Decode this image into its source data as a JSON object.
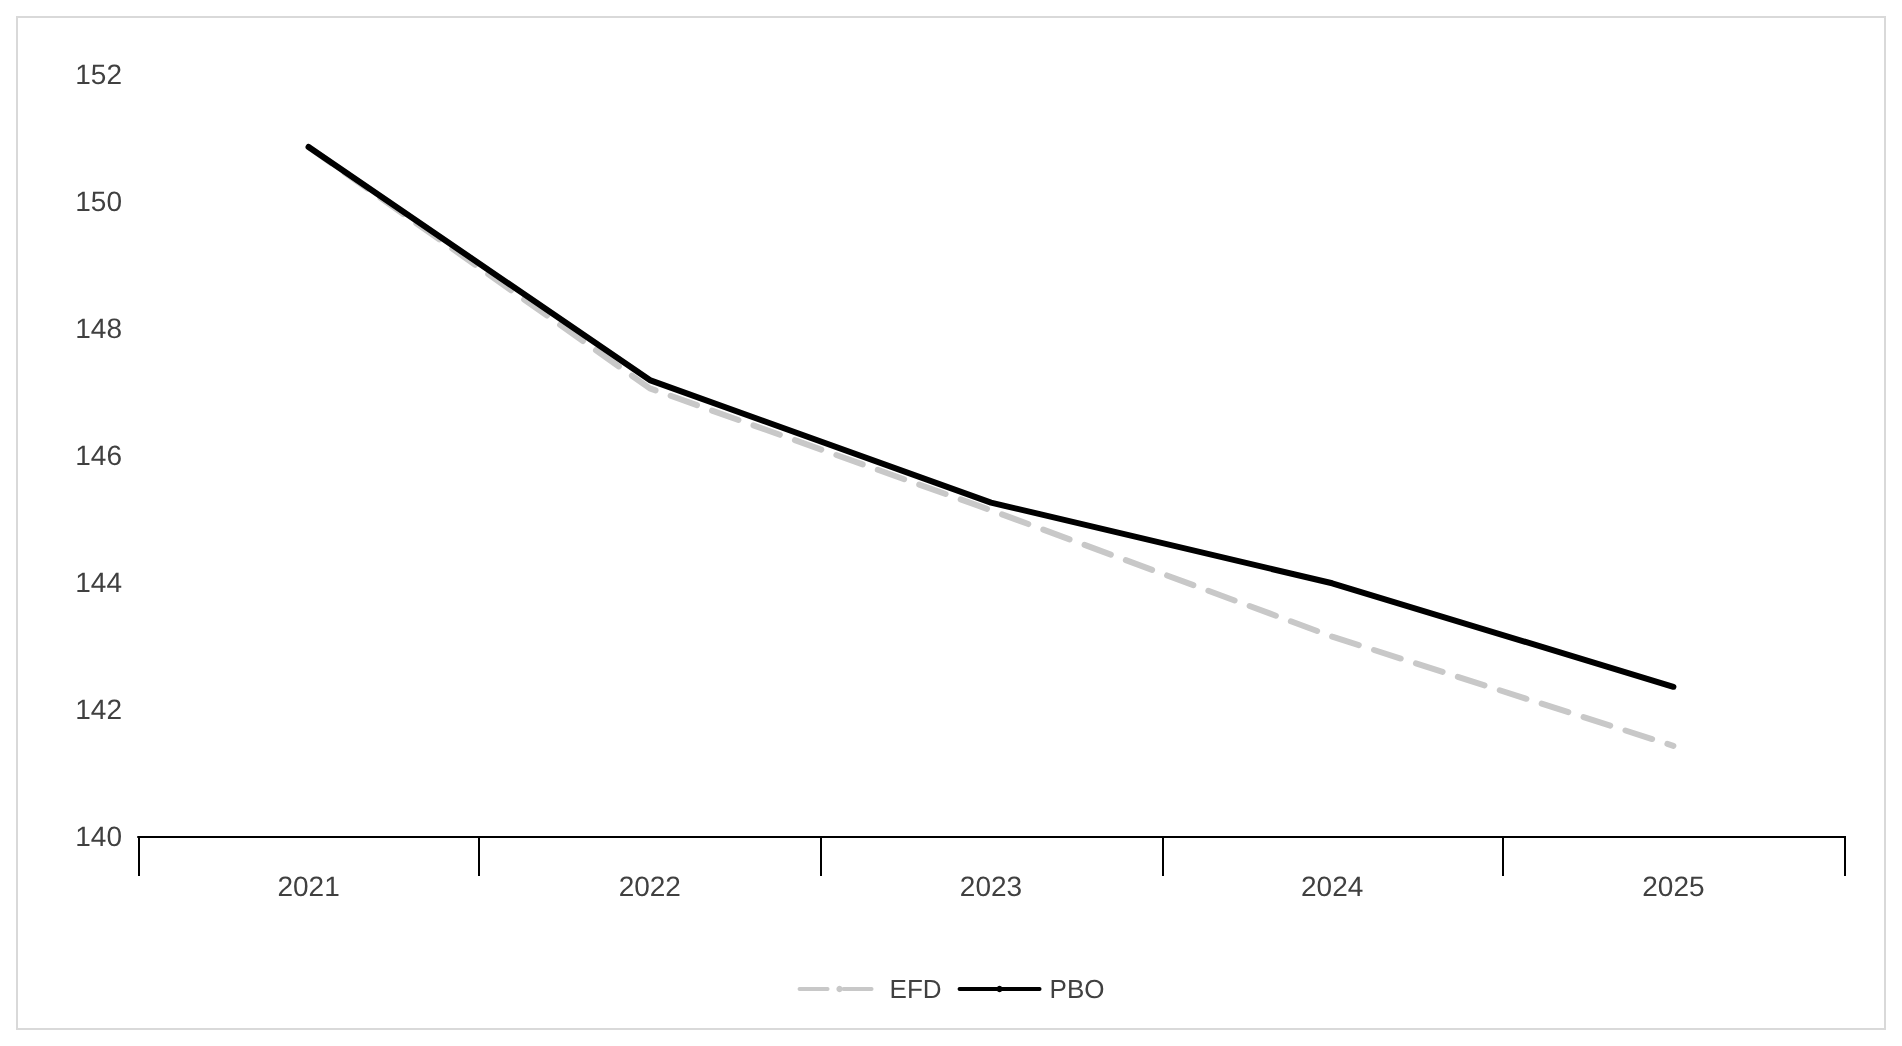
{
  "chart_data": {
    "type": "line",
    "categories": [
      "2021",
      "2022",
      "2023",
      "2024",
      "2025"
    ],
    "series": [
      {
        "name": "EFD",
        "color": "#c8c8c8",
        "line_style": "dashed",
        "values": [
          150.85,
          147.05,
          145.13,
          143.14,
          141.42
        ]
      },
      {
        "name": "PBO",
        "color": "#000000",
        "line_style": "solid",
        "values": [
          150.85,
          147.18,
          145.25,
          143.98,
          142.35
        ]
      }
    ],
    "ylim": [
      140,
      152
    ],
    "yticks": [
      140,
      142,
      144,
      146,
      148,
      150,
      152
    ],
    "grid": false,
    "legend": "bottom",
    "marker": "none"
  }
}
